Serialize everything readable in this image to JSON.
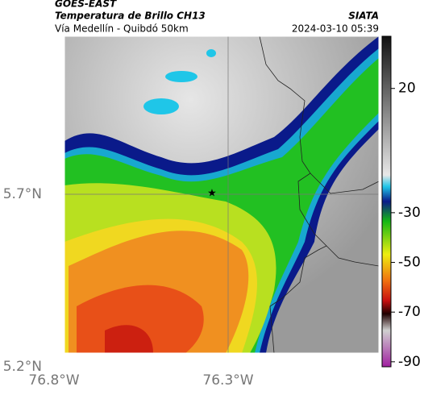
{
  "header": {
    "source": "GOES-EAST",
    "title": "Temperatura de Brillo CH13",
    "subtitle": "Vía Medellín - Quibdó 50km",
    "brand": "SIATA",
    "timestamp": "2024-03-10 05:39"
  },
  "map": {
    "lat_labels": [
      "5.7°N",
      "5.2°N"
    ],
    "lon_labels": [
      "76.8°W",
      "76.3°W"
    ]
  },
  "colorbar": {
    "lim": [
      -92,
      41
    ],
    "ticks": [
      20,
      -30,
      -50,
      -70,
      -90
    ]
  }
}
